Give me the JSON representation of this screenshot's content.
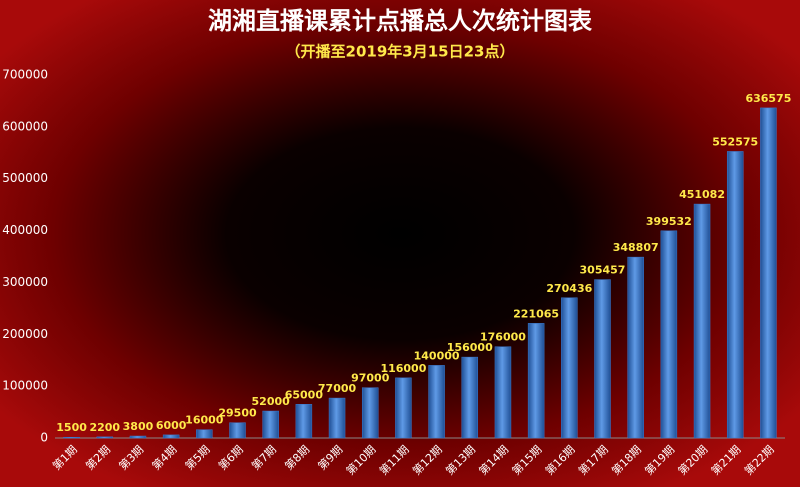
{
  "chart_data": {
    "type": "bar",
    "title": "湖湘直播课累计点播总人次统计图表",
    "subtitle": "（开播至2019年3月15日23点）",
    "categories": [
      "第1期",
      "第2期",
      "第3期",
      "第4期",
      "第5期",
      "第6期",
      "第7期",
      "第8期",
      "第9期",
      "第10期",
      "第11期",
      "第12期",
      "第13期",
      "第14期",
      "第15期",
      "第16期",
      "第17期",
      "第18期",
      "第19期",
      "第20期",
      "第21期",
      "第22期"
    ],
    "values": [
      1500,
      2200,
      3800,
      6000,
      16000,
      29500,
      52000,
      65000,
      77000,
      97000,
      116000,
      140000,
      156000,
      176000,
      221065,
      270436,
      305457,
      348807,
      399532,
      451082,
      552575,
      636575
    ],
    "color": "#3b7bd0",
    "ylim": [
      0,
      700000
    ],
    "yticks": [
      0,
      100000,
      200000,
      300000,
      400000,
      500000,
      600000,
      700000
    ],
    "grid": false
  }
}
